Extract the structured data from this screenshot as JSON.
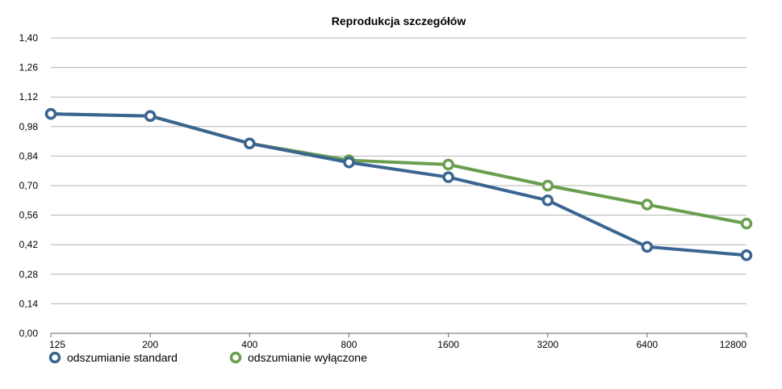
{
  "chart_data": {
    "type": "line",
    "title": "Reprodukcja szczegółów",
    "xlabel": "",
    "ylabel": "",
    "categories": [
      "125",
      "200",
      "400",
      "800",
      "1600",
      "3200",
      "6400",
      "12800"
    ],
    "ylim": [
      0,
      1.4
    ],
    "y_ticks": [
      "0,00",
      "0,14",
      "0,28",
      "0,42",
      "0,56",
      "0,70",
      "0,84",
      "0,98",
      "1,12",
      "1,26",
      "1,40"
    ],
    "grid": true,
    "legend_position": "bottom-left",
    "series": [
      {
        "name": "odszumianie wyłączone",
        "color": "#6a9e4f",
        "values": [
          1.04,
          1.03,
          0.9,
          0.82,
          0.8,
          0.7,
          0.61,
          0.52
        ]
      },
      {
        "name": "odszumianie standard",
        "color": "#3a6591",
        "values": [
          1.04,
          1.03,
          0.9,
          0.81,
          0.74,
          0.63,
          0.41,
          0.37
        ]
      }
    ]
  }
}
